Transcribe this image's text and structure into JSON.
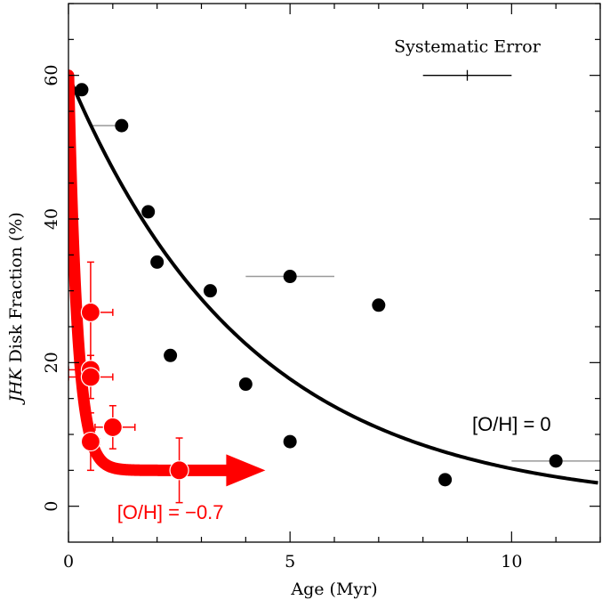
{
  "chart_data": {
    "type": "scatter",
    "xlabel": "Age  (Myr)",
    "ylabel_italic": "JHK",
    "ylabel_rest": " Disk Fraction  (%)",
    "xlim": [
      0,
      12
    ],
    "ylim": [
      -5,
      70
    ],
    "x_ticks": [
      0,
      5,
      10
    ],
    "y_ticks": [
      0,
      20,
      40,
      60
    ],
    "grid": false,
    "series": [
      {
        "name": "[O/H] = 0",
        "color": "#000000",
        "points": [
          {
            "x": 0.3,
            "y": 58
          },
          {
            "x": 1.2,
            "y": 53,
            "xerr": [
              0.7,
              0
            ]
          },
          {
            "x": 1.8,
            "y": 41
          },
          {
            "x": 2.0,
            "y": 34
          },
          {
            "x": 2.3,
            "y": 21
          },
          {
            "x": 3.2,
            "y": 30
          },
          {
            "x": 4.0,
            "y": 17
          },
          {
            "x": 5.0,
            "y": 32,
            "xerr": [
              1.0,
              1.0
            ]
          },
          {
            "x": 5.0,
            "y": 9
          },
          {
            "x": 7.0,
            "y": 28
          },
          {
            "x": 8.5,
            "y": 3.7
          },
          {
            "x": 11.0,
            "y": 6.3,
            "xerr": [
              1.0,
              1.0
            ]
          }
        ],
        "fit_curve": {
          "amplitude": 60,
          "timescale": 4.1
        }
      },
      {
        "name": "[O/H] = -0.7",
        "color": "#ff0000",
        "points": [
          {
            "x": 0.5,
            "y": 27,
            "xerr": [
              0.1,
              0.5
            ],
            "yerr": [
              10,
              7
            ]
          },
          {
            "x": 0.5,
            "y": 19,
            "xerr": [
              0.5,
              0.1
            ],
            "yerr": [
              2,
              2
            ]
          },
          {
            "x": 0.5,
            "y": 18,
            "xerr": [
              0.5,
              0.5
            ],
            "yerr": [
              3,
              3
            ]
          },
          {
            "x": 0.5,
            "y": 9,
            "xerr": [
              0.1,
              0.2
            ],
            "yerr": [
              4,
              4
            ]
          },
          {
            "x": 1.0,
            "y": 11,
            "xerr": [
              0.4,
              0.5
            ],
            "yerr": [
              3,
              3
            ]
          },
          {
            "x": 2.5,
            "y": 5,
            "xerr": [
              0.5,
              0.5
            ],
            "yerr": [
              4.5,
              4.5
            ]
          }
        ],
        "fit_curve": {
          "amplitude": 55,
          "timescale": 0.2,
          "offset": 5,
          "end_x": 3.6
        }
      }
    ],
    "annotations": [
      {
        "text": "[O/H] = 0",
        "x": 10.0,
        "y": 10.5,
        "color": "#000000"
      },
      {
        "text": "[O/H] = −0.7",
        "x": 2.3,
        "y": -1.8,
        "color": "#ff0000"
      }
    ],
    "systematic_error": {
      "label": "Systematic Error",
      "center_x": 9.0,
      "half_width": 1.0,
      "y": 60
    }
  }
}
